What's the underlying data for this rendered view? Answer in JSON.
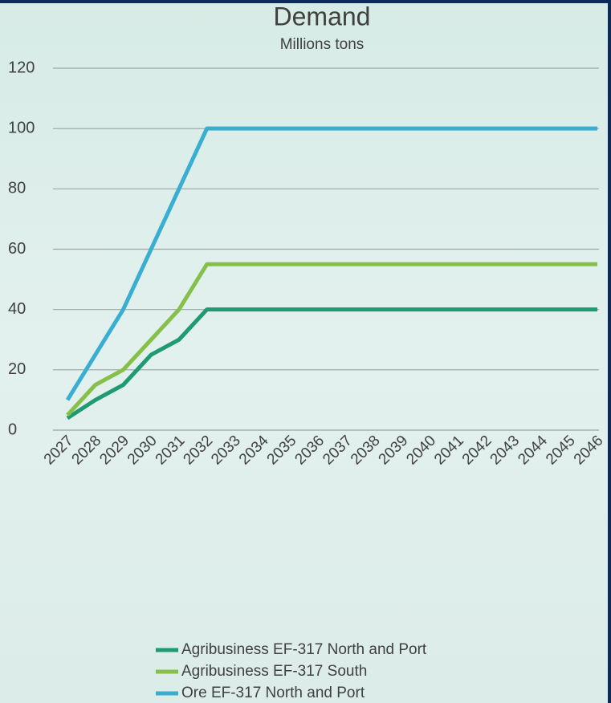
{
  "chart_data": {
    "type": "line",
    "title": "Demand",
    "subtitle": "Millions tons",
    "categories": [
      "2027",
      "2028",
      "2029",
      "2030",
      "2031",
      "2032",
      "2033",
      "2034",
      "2035",
      "2036",
      "2037",
      "2038",
      "2039",
      "2040",
      "2041",
      "2042",
      "2043",
      "2044",
      "2045",
      "2046"
    ],
    "series": [
      {
        "name": "Agribusiness EF-317 North and Port",
        "color": "#1f9a72",
        "values": [
          4,
          10,
          15,
          25,
          30,
          40,
          40,
          40,
          40,
          40,
          40,
          40,
          40,
          40,
          40,
          40,
          40,
          40,
          40,
          40
        ]
      },
      {
        "name": "Agribusiness EF-317 South",
        "color": "#86c04a",
        "values": [
          5,
          15,
          20,
          30,
          40,
          55,
          55,
          55,
          55,
          55,
          55,
          55,
          55,
          55,
          55,
          55,
          55,
          55,
          55,
          55
        ]
      },
      {
        "name": "Ore EF-317 North and Port",
        "color": "#3aaed0",
        "values": [
          10,
          25,
          40,
          60,
          80,
          100,
          100,
          100,
          100,
          100,
          100,
          100,
          100,
          100,
          100,
          100,
          100,
          100,
          100,
          100
        ]
      }
    ],
    "ylim": [
      0,
      120
    ],
    "yticks": [
      0,
      20,
      40,
      60,
      80,
      100,
      120
    ],
    "grid": true,
    "legend": "bottom"
  }
}
